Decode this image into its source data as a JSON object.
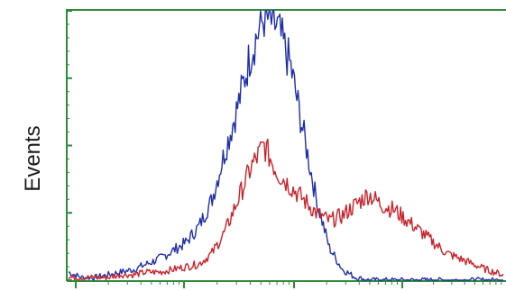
{
  "chart_data": {
    "type": "line",
    "ylabel": "Events",
    "xlabel": "",
    "title": "",
    "x": [
      0.0,
      0.03,
      0.06,
      0.09,
      0.12,
      0.15,
      0.18,
      0.21,
      0.24,
      0.27,
      0.3,
      0.33,
      0.36,
      0.39,
      0.42,
      0.45,
      0.48,
      0.51,
      0.54,
      0.57,
      0.6,
      0.63,
      0.66,
      0.69,
      0.72,
      0.75,
      0.78,
      0.81,
      0.84,
      0.87,
      0.9,
      0.93,
      0.96,
      1.0
    ],
    "xlim": [
      0,
      1
    ],
    "ylim": [
      0,
      100
    ],
    "grid": false,
    "colors": {
      "frame": "#2e8b3a",
      "blue": "#1f2fa8",
      "red": "#c8232c",
      "text": "#1a1a1a"
    },
    "series": [
      {
        "color": "#1f2fa8",
        "values": [
          3,
          1,
          1,
          2,
          3,
          4,
          6,
          8,
          11,
          14,
          20,
          30,
          48,
          65,
          85,
          98,
          94,
          80,
          55,
          30,
          12,
          4,
          1,
          0,
          0,
          0,
          0,
          0,
          0,
          0,
          0,
          0,
          0,
          0
        ]
      },
      {
        "color": "#c8232c",
        "values": [
          1,
          1,
          1,
          1,
          2,
          2,
          3,
          3,
          4,
          5,
          6,
          10,
          18,
          30,
          42,
          50,
          40,
          35,
          30,
          25,
          22,
          24,
          28,
          32,
          28,
          26,
          22,
          18,
          14,
          10,
          8,
          6,
          4,
          2
        ]
      }
    ]
  }
}
